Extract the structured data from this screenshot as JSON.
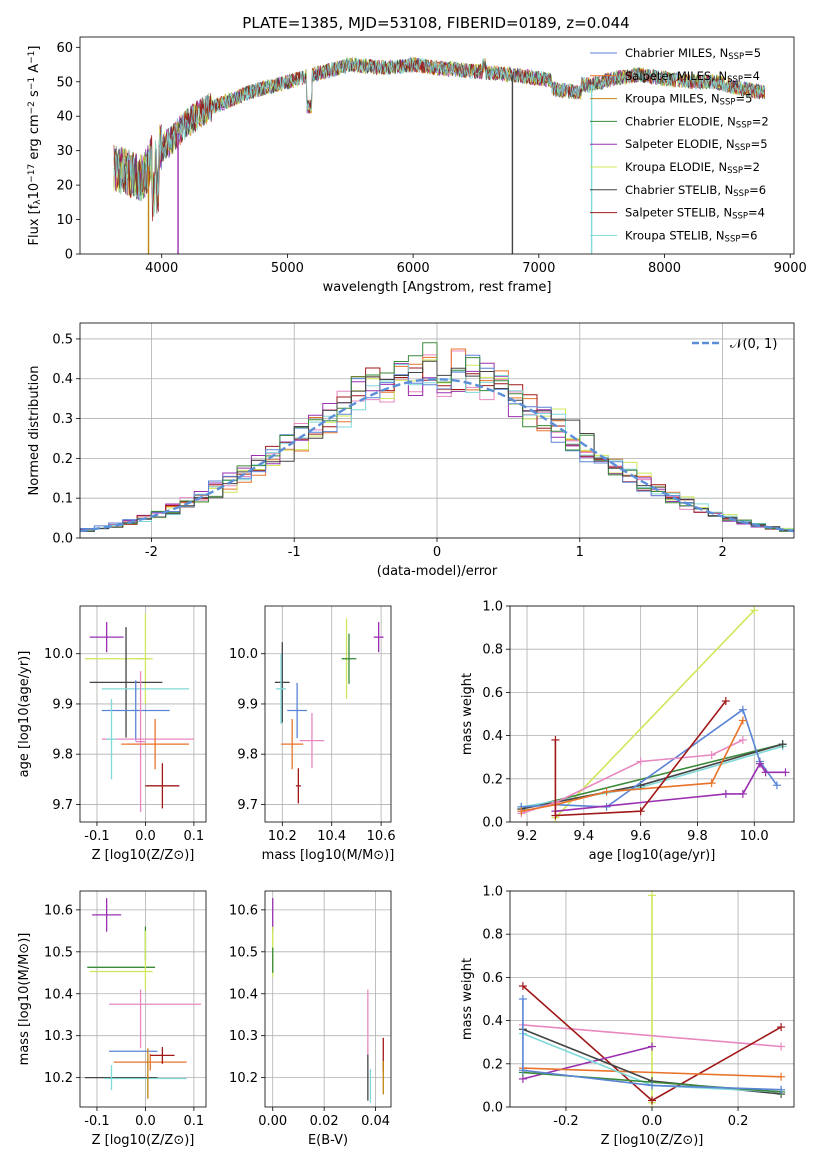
{
  "figure": {
    "title": "PLATE=1385, MJD=53108, FIBERID=0189, z=0.044"
  },
  "colors": [
    "#5a84d6",
    "#e8732a",
    "#c08410",
    "#3a8a3a",
    "#9a30b0",
    "#cde85a",
    "#444444",
    "#a01818",
    "#80d8d8",
    "#e888c0"
  ],
  "chart_data": [
    {
      "id": "spectrum",
      "type": "line",
      "title": "PLATE=1385, MJD=53108, FIBERID=0189, z=0.044",
      "xlabel": "wavelength [Angstrom, rest frame]",
      "ylabel": "Flux [f_λ 10^-17 erg cm^-2 s^-1 A^-1]",
      "xlim": [
        3350,
        9030
      ],
      "ylim": [
        0,
        63
      ],
      "xticks": [
        4000,
        5000,
        6000,
        7000,
        8000,
        9000
      ],
      "yticks": [
        0,
        10,
        20,
        30,
        40,
        50,
        60
      ],
      "grid": false,
      "legend": "top-right",
      "continuum": [
        [
          3620,
          25
        ],
        [
          3850,
          22
        ],
        [
          3950,
          30
        ],
        [
          4050,
          32
        ],
        [
          4200,
          38
        ],
        [
          4350,
          42
        ],
        [
          4500,
          44
        ],
        [
          4700,
          47
        ],
        [
          4900,
          49
        ],
        [
          5100,
          51
        ],
        [
          5300,
          53
        ],
        [
          5500,
          55
        ],
        [
          5800,
          54
        ],
        [
          6000,
          55
        ],
        [
          6200,
          54
        ],
        [
          6500,
          53
        ],
        [
          6800,
          52
        ],
        [
          7000,
          51
        ],
        [
          7200,
          50
        ],
        [
          7400,
          49
        ],
        [
          7600,
          51
        ],
        [
          7800,
          52
        ],
        [
          8000,
          51
        ],
        [
          8200,
          50
        ],
        [
          8400,
          50
        ],
        [
          8600,
          48
        ],
        [
          8800,
          47
        ]
      ],
      "series": [
        {
          "name": "Chabrier MILES, N_SSP=5",
          "label": "Chabrier MILES, N",
          "sub": "SSP",
          "val": "=5",
          "color": "#5a84d6"
        },
        {
          "name": "Salpeter MILES, N_SSP=4",
          "label": "Salpeter MILES, N",
          "sub": "SSP",
          "val": "=4",
          "color": "#e8732a"
        },
        {
          "name": "Kroupa MILES, N_SSP=5",
          "label": "Kroupa MILES, N",
          "sub": "SSP",
          "val": "=5",
          "color": "#c08410"
        },
        {
          "name": "Chabrier ELODIE, N_SSP=2",
          "label": "Chabrier ELODIE, N",
          "sub": "SSP",
          "val": "=2",
          "color": "#3a8a3a"
        },
        {
          "name": "Salpeter ELODIE, N_SSP=5",
          "label": "Salpeter ELODIE, N",
          "sub": "SSP",
          "val": "=5",
          "color": "#9a30b0"
        },
        {
          "name": "Kroupa ELODIE, N_SSP=2",
          "label": "Kroupa ELODIE, N",
          "sub": "SSP",
          "val": "=2",
          "color": "#cde85a"
        },
        {
          "name": "Chabrier STELIB, N_SSP=6",
          "label": "Chabrier STELIB, N",
          "sub": "SSP",
          "val": "=6",
          "color": "#444444"
        },
        {
          "name": "Salpeter STELIB, N_SSP=4",
          "label": "Salpeter STELIB, N",
          "sub": "SSP",
          "val": "=4",
          "color": "#a01818"
        },
        {
          "name": "Kroupa STELIB, N_SSP=6",
          "label": "Kroupa STELIB, N",
          "sub": "SSP",
          "val": "=6",
          "color": "#80d8d8"
        }
      ],
      "drops": [
        [
          3895,
          0
        ],
        [
          4130,
          0
        ],
        [
          6790,
          0
        ],
        [
          7420,
          0
        ]
      ]
    },
    {
      "id": "residuals",
      "type": "histogram",
      "xlabel": "(data-model)/error",
      "ylabel": "Normed distribution",
      "xlim": [
        -2.5,
        2.5
      ],
      "ylim": [
        0,
        0.54
      ],
      "xticks": [
        -2,
        -1,
        0,
        1,
        2
      ],
      "yticks": [
        0.0,
        0.1,
        0.2,
        0.3,
        0.4,
        0.5
      ],
      "bin_width": 0.1,
      "grid": true,
      "legend": "top-right",
      "reference": {
        "name": "N(0,1)",
        "label": "𝒩(0, 1)",
        "mean": 0,
        "sd": 1,
        "color": "#5b8fd8"
      }
    },
    {
      "id": "age-vs-z",
      "type": "scatter",
      "xlabel": "Z [log10(Z/Z⊙)]",
      "ylabel": "age [log10(age/yr)]",
      "xlim": [
        -0.135,
        0.125
      ],
      "ylim": [
        9.665,
        10.095
      ],
      "xticks": [
        -0.1,
        0.0,
        0.1
      ],
      "yticks": [
        9.7,
        9.8,
        9.9,
        10.0
      ],
      "grid": true,
      "points": [
        {
          "x": -0.08,
          "y": 10.033,
          "xerr": 0.035,
          "yerr": 0.03,
          "color": "#9a30b0"
        },
        {
          "x": -0.06,
          "y": 9.99,
          "xerr": 0.065,
          "yerr": 0.0,
          "color": "#cde85a"
        },
        {
          "x": 0.0,
          "y": 9.99,
          "xerr": 0.015,
          "yerr": 0.09,
          "color": "#cde85a"
        },
        {
          "x": -0.04,
          "y": 9.943,
          "xerr": 0.075,
          "yerr": 0.11,
          "color": "#444444"
        },
        {
          "x": 0.0,
          "y": 9.93,
          "xerr": 0.09,
          "yerr": 0.0,
          "color": "#80d8d8"
        },
        {
          "x": -0.02,
          "y": 9.887,
          "xerr": 0.07,
          "yerr": 0.06,
          "color": "#5a84d6"
        },
        {
          "x": 0.005,
          "y": 9.83,
          "xerr": 0.095,
          "yerr": 0.0,
          "color": "#e888c0"
        },
        {
          "x": 0.02,
          "y": 9.82,
          "xerr": 0.07,
          "yerr": 0.05,
          "color": "#e8732a"
        },
        {
          "x": -0.07,
          "y": 9.83,
          "xerr": 0.01,
          "yerr": 0.08,
          "color": "#80d8d8"
        },
        {
          "x": -0.01,
          "y": 9.825,
          "xerr": 0.01,
          "yerr": 0.14,
          "color": "#e888c0"
        },
        {
          "x": 0.035,
          "y": 9.737,
          "xerr": 0.035,
          "yerr": 0.045,
          "color": "#a01818"
        }
      ]
    },
    {
      "id": "age-vs-mass",
      "type": "scatter",
      "xlabel": "mass [log10(M/M⊙)]",
      "ylabel": "",
      "xlim": [
        10.13,
        10.64
      ],
      "ylim": [
        9.665,
        10.095
      ],
      "xticks": [
        10.2,
        10.4,
        10.6
      ],
      "yticks": [
        9.7,
        9.8,
        9.9,
        10.0
      ],
      "grid": true,
      "points": [
        {
          "x": 10.59,
          "y": 10.033,
          "xerr": 0.02,
          "yerr": 0.03,
          "color": "#9a30b0"
        },
        {
          "x": 10.46,
          "y": 9.99,
          "xerr": 0.015,
          "yerr": 0.08,
          "color": "#cde85a"
        },
        {
          "x": 10.47,
          "y": 9.99,
          "xerr": 0.03,
          "yerr": 0.05,
          "color": "#3a8a3a"
        },
        {
          "x": 10.2,
          "y": 9.943,
          "xerr": 0.03,
          "yerr": 0.08,
          "color": "#444444"
        },
        {
          "x": 10.195,
          "y": 9.93,
          "xerr": 0.02,
          "yerr": 0.07,
          "color": "#80d8d8"
        },
        {
          "x": 10.26,
          "y": 9.887,
          "xerr": 0.04,
          "yerr": 0.055,
          "color": "#5a84d6"
        },
        {
          "x": 10.32,
          "y": 9.827,
          "xerr": 0.05,
          "yerr": 0.055,
          "color": "#e888c0"
        },
        {
          "x": 10.24,
          "y": 9.82,
          "xerr": 0.045,
          "yerr": 0.05,
          "color": "#e8732a"
        },
        {
          "x": 10.265,
          "y": 9.737,
          "xerr": 0.01,
          "yerr": 0.035,
          "color": "#a01818"
        }
      ]
    },
    {
      "id": "weight-vs-age",
      "type": "line",
      "xlabel": "age [log10(age/yr)]",
      "ylabel": "mass weight",
      "xlim": [
        9.14,
        10.14
      ],
      "ylim": [
        0,
        1.0
      ],
      "xticks": [
        9.2,
        9.4,
        9.6,
        9.8,
        10.0
      ],
      "yticks": [
        0.0,
        0.2,
        0.4,
        0.6,
        0.8,
        1.0
      ],
      "grid": true,
      "series": [
        {
          "color": "#cde85a",
          "points": [
            [
              9.3,
              0.02
            ],
            [
              10.0,
              0.98
            ]
          ]
        },
        {
          "color": "#3a8a3a",
          "points": [
            [
              9.18,
              0.06
            ],
            [
              10.1,
              0.36
            ]
          ]
        },
        {
          "color": "#80d8d8",
          "points": [
            [
              9.18,
              0.07
            ],
            [
              9.6,
              0.16
            ],
            [
              10.1,
              0.35
            ]
          ]
        },
        {
          "color": "#444444",
          "points": [
            [
              9.18,
              0.06
            ],
            [
              9.6,
              0.17
            ],
            [
              10.1,
              0.36
            ]
          ]
        },
        {
          "color": "#5a84d6",
          "points": [
            [
              9.18,
              0.07
            ],
            [
              9.3,
              0.08
            ],
            [
              9.48,
              0.07
            ],
            [
              9.96,
              0.52
            ],
            [
              10.02,
              0.28
            ],
            [
              10.08,
              0.17
            ]
          ]
        },
        {
          "color": "#e888c0",
          "points": [
            [
              9.18,
              0.04
            ],
            [
              9.3,
              0.09
            ],
            [
              9.6,
              0.28
            ],
            [
              9.85,
              0.31
            ],
            [
              9.96,
              0.38
            ]
          ]
        },
        {
          "color": "#e8732a",
          "points": [
            [
              9.18,
              0.05
            ],
            [
              9.3,
              0.08
            ],
            [
              9.48,
              0.14
            ],
            [
              9.85,
              0.18
            ],
            [
              9.96,
              0.47
            ]
          ]
        },
        {
          "color": "#9a30b0",
          "points": [
            [
              9.3,
              0.05
            ],
            [
              9.9,
              0.13
            ],
            [
              9.96,
              0.13
            ],
            [
              10.02,
              0.27
            ],
            [
              10.04,
              0.23
            ],
            [
              10.11,
              0.23
            ]
          ]
        },
        {
          "color": "#a01818",
          "points": [
            [
              9.3,
              0.38
            ],
            [
              9.3,
              0.03
            ],
            [
              9.6,
              0.05
            ],
            [
              9.9,
              0.56
            ]
          ]
        }
      ]
    },
    {
      "id": "mass-vs-z",
      "type": "scatter",
      "xlabel": "Z [log10(Z/Z⊙)]",
      "ylabel": "mass [log10(M/M⊙)]",
      "xlim": [
        -0.135,
        0.125
      ],
      "ylim": [
        10.13,
        10.645
      ],
      "xticks": [
        -0.1,
        0.0,
        0.1
      ],
      "yticks": [
        10.2,
        10.3,
        10.4,
        10.5,
        10.6
      ],
      "grid": true,
      "points": [
        {
          "x": -0.08,
          "y": 10.588,
          "xerr": 0.03,
          "yerr": 0.04,
          "color": "#9a30b0"
        },
        {
          "x": 0.0,
          "y": 10.52,
          "xerr": 0.0,
          "yerr": 0.04,
          "color": "#3a8a3a"
        },
        {
          "x": -0.05,
          "y": 10.463,
          "xerr": 0.07,
          "yerr": 0.0,
          "color": "#3a8a3a"
        },
        {
          "x": -0.05,
          "y": 10.453,
          "xerr": 0.065,
          "yerr": 0.0,
          "color": "#cde85a"
        },
        {
          "x": 0.0,
          "y": 10.48,
          "xerr": 0.0,
          "yerr": 0.07,
          "color": "#cde85a"
        },
        {
          "x": 0.02,
          "y": 10.375,
          "xerr": 0.095,
          "yerr": 0.0,
          "color": "#e888c0"
        },
        {
          "x": -0.01,
          "y": 10.34,
          "xerr": 0.0,
          "yerr": 0.07,
          "color": "#e888c0"
        },
        {
          "x": 0.01,
          "y": 10.237,
          "xerr": 0.075,
          "yerr": 0.02,
          "color": "#e8732a"
        },
        {
          "x": -0.025,
          "y": 10.263,
          "xerr": 0.05,
          "yerr": 0.0,
          "color": "#5a84d6"
        },
        {
          "x": 0.035,
          "y": 10.253,
          "xerr": 0.025,
          "yerr": 0.02,
          "color": "#a01818"
        },
        {
          "x": -0.05,
          "y": 10.2,
          "xerr": 0.075,
          "yerr": 0.0,
          "color": "#444444"
        },
        {
          "x": 0.0,
          "y": 10.198,
          "xerr": 0.085,
          "yerr": 0.0,
          "color": "#80d8d8"
        },
        {
          "x": -0.07,
          "y": 10.2,
          "xerr": 0.0,
          "yerr": 0.03,
          "color": "#80d8d8"
        },
        {
          "x": 0.005,
          "y": 10.21,
          "xerr": 0.0,
          "yerr": 0.06,
          "color": "#c08410"
        }
      ]
    },
    {
      "id": "mass-vs-ebv",
      "type": "scatter",
      "xlabel": "E(B-V)",
      "ylabel": "",
      "xlim": [
        -0.003,
        0.046
      ],
      "ylim": [
        10.13,
        10.645
      ],
      "xticks": [
        0.0,
        0.02,
        0.04
      ],
      "yticks": [
        10.2,
        10.3,
        10.4,
        10.5,
        10.6
      ],
      "grid": true,
      "points": [
        {
          "x": 0.0,
          "y": 10.588,
          "xerr": 0.0,
          "yerr": 0.04,
          "color": "#9a30b0"
        },
        {
          "x": 0.0,
          "y": 10.5,
          "xerr": 0.0,
          "yerr": 0.06,
          "color": "#cde85a"
        },
        {
          "x": 0.0,
          "y": 10.48,
          "xerr": 0.0,
          "yerr": 0.03,
          "color": "#3a8a3a"
        },
        {
          "x": 0.037,
          "y": 10.33,
          "xerr": 0.0,
          "yerr": 0.08,
          "color": "#e888c0"
        },
        {
          "x": 0.037,
          "y": 10.2,
          "xerr": 0.0,
          "yerr": 0.055,
          "color": "#444444"
        },
        {
          "x": 0.038,
          "y": 10.18,
          "xerr": 0.0,
          "yerr": 0.04,
          "color": "#80d8d8"
        },
        {
          "x": 0.043,
          "y": 10.255,
          "xerr": 0.0,
          "yerr": 0.04,
          "color": "#a01818"
        },
        {
          "x": 0.043,
          "y": 10.2,
          "xerr": 0.0,
          "yerr": 0.04,
          "color": "#c08410"
        }
      ]
    },
    {
      "id": "weight-vs-z",
      "type": "line",
      "xlabel": "Z [log10(Z/Z⊙)]",
      "ylabel": "mass weight",
      "xlim": [
        -0.33,
        0.33
      ],
      "ylim": [
        0,
        1.0
      ],
      "xticks": [
        -0.2,
        0.0,
        0.2
      ],
      "yticks": [
        0.0,
        0.2,
        0.4,
        0.6,
        0.8,
        1.0
      ],
      "grid": true,
      "series": [
        {
          "color": "#cde85a",
          "points": [
            [
              0.0,
              0.98
            ],
            [
              0.0,
              0.02
            ]
          ]
        },
        {
          "color": "#e888c0",
          "points": [
            [
              -0.3,
              0.38
            ],
            [
              0.3,
              0.28
            ]
          ]
        },
        {
          "color": "#a01818",
          "points": [
            [
              -0.3,
              0.56
            ],
            [
              0.0,
              0.03
            ],
            [
              0.3,
              0.37
            ]
          ]
        },
        {
          "color": "#9a30b0",
          "points": [
            [
              -0.3,
              0.13
            ],
            [
              0.0,
              0.28
            ]
          ]
        },
        {
          "color": "#e8732a",
          "points": [
            [
              -0.3,
              0.18
            ],
            [
              0.3,
              0.14
            ]
          ]
        },
        {
          "color": "#444444",
          "points": [
            [
              -0.3,
              0.36
            ],
            [
              0.0,
              0.12
            ],
            [
              0.3,
              0.06
            ]
          ]
        },
        {
          "color": "#80d8d8",
          "points": [
            [
              -0.3,
              0.34
            ],
            [
              0.0,
              0.1
            ],
            [
              0.3,
              0.07
            ]
          ]
        },
        {
          "color": "#3a8a3a",
          "points": [
            [
              -0.3,
              0.16
            ],
            [
              0.3,
              0.07
            ]
          ]
        },
        {
          "color": "#5a84d6",
          "points": [
            [
              -0.3,
              0.5
            ],
            [
              -0.3,
              0.17
            ],
            [
              0.0,
              0.1
            ],
            [
              0.3,
              0.08
            ]
          ]
        }
      ]
    }
  ]
}
